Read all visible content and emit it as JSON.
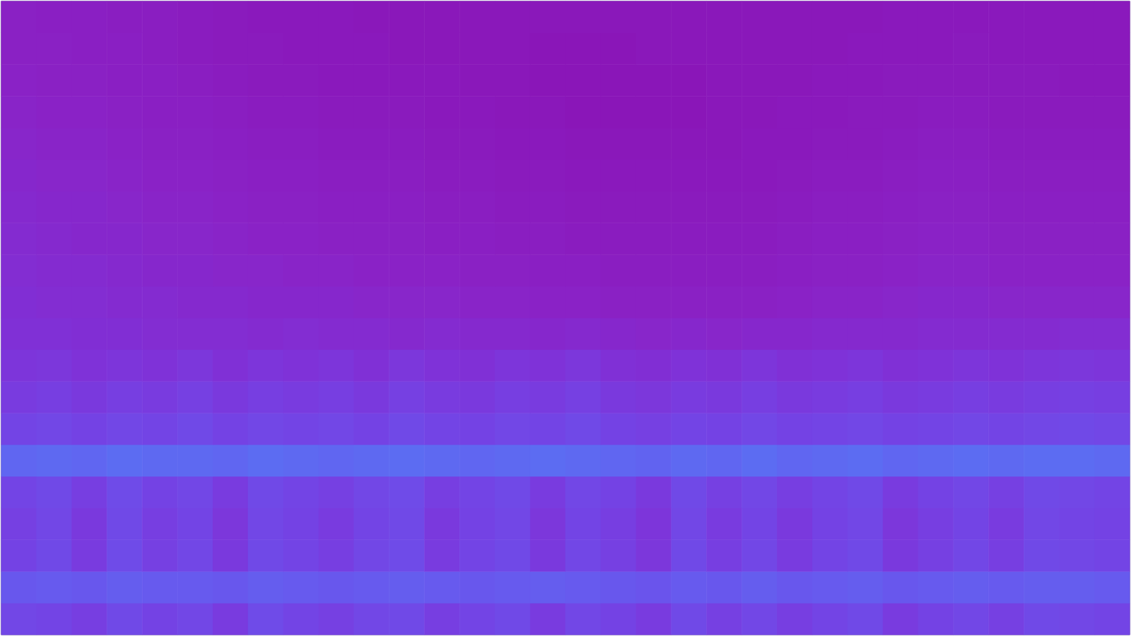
{
  "chart_data": {
    "type": "heatmap",
    "tick_labels": false,
    "grid": false,
    "cells": [
      [
        60,
        58,
        52,
        62,
        56,
        60,
        50,
        64,
        58,
        54,
        60,
        62,
        52,
        58,
        62,
        50,
        60,
        56,
        50,
        62,
        54,
        60,
        52,
        58,
        62,
        50,
        56,
        60,
        54,
        62,
        60,
        58
      ],
      [
        74,
        76,
        74,
        78,
        76,
        76,
        74,
        78,
        76,
        74,
        76,
        78,
        76,
        74,
        76,
        78,
        76,
        74,
        72,
        76,
        74,
        78,
        74,
        76,
        78,
        74,
        76,
        78,
        76,
        78,
        78,
        76
      ],
      [
        56,
        62,
        50,
        64,
        54,
        60,
        48,
        62,
        58,
        52,
        60,
        64,
        50,
        58,
        62,
        48,
        60,
        54,
        46,
        62,
        52,
        60,
        50,
        58,
        62,
        48,
        54,
        60,
        52,
        62,
        60,
        58
      ],
      [
        54,
        60,
        48,
        62,
        52,
        58,
        46,
        60,
        56,
        50,
        58,
        62,
        48,
        56,
        60,
        46,
        58,
        52,
        44,
        60,
        50,
        58,
        48,
        56,
        60,
        46,
        52,
        58,
        50,
        60,
        58,
        56
      ],
      [
        58,
        62,
        52,
        64,
        56,
        60,
        50,
        62,
        58,
        54,
        60,
        64,
        52,
        58,
        62,
        50,
        60,
        56,
        48,
        62,
        54,
        60,
        52,
        58,
        62,
        50,
        56,
        60,
        54,
        62,
        60,
        58
      ],
      [
        84,
        86,
        84,
        88,
        86,
        86,
        84,
        88,
        86,
        84,
        86,
        88,
        86,
        84,
        86,
        88,
        86,
        84,
        82,
        86,
        84,
        88,
        84,
        86,
        88,
        84,
        86,
        88,
        86,
        88,
        88,
        86
      ],
      [
        58,
        60,
        56,
        60,
        58,
        62,
        56,
        60,
        58,
        60,
        56,
        62,
        58,
        56,
        60,
        58,
        62,
        56,
        54,
        58,
        56,
        60,
        56,
        58,
        60,
        56,
        58,
        60,
        58,
        60,
        62,
        60
      ],
      [
        50,
        52,
        48,
        52,
        50,
        54,
        48,
        52,
        50,
        52,
        48,
        54,
        50,
        48,
        52,
        50,
        54,
        48,
        46,
        50,
        48,
        52,
        48,
        50,
        52,
        48,
        50,
        52,
        50,
        52,
        54,
        52
      ],
      [
        44,
        46,
        42,
        44,
        42,
        46,
        40,
        44,
        42,
        44,
        40,
        46,
        42,
        40,
        44,
        42,
        46,
        40,
        38,
        42,
        40,
        44,
        40,
        42,
        44,
        40,
        42,
        44,
        42,
        44,
        46,
        44
      ],
      [
        40,
        40,
        38,
        38,
        36,
        36,
        36,
        34,
        36,
        34,
        34,
        32,
        34,
        32,
        32,
        30,
        32,
        30,
        28,
        30,
        28,
        30,
        30,
        32,
        32,
        32,
        34,
        34,
        34,
        34,
        36,
        36
      ],
      [
        38,
        36,
        36,
        34,
        34,
        32,
        32,
        30,
        30,
        30,
        28,
        28,
        28,
        26,
        26,
        24,
        24,
        22,
        22,
        22,
        22,
        22,
        24,
        26,
        26,
        28,
        30,
        30,
        28,
        28,
        28,
        28
      ],
      [
        36,
        34,
        34,
        32,
        30,
        30,
        28,
        28,
        26,
        26,
        24,
        24,
        24,
        22,
        22,
        20,
        20,
        18,
        18,
        18,
        18,
        18,
        20,
        22,
        22,
        24,
        26,
        26,
        24,
        24,
        24,
        24
      ],
      [
        34,
        32,
        30,
        30,
        28,
        28,
        26,
        24,
        24,
        22,
        22,
        22,
        20,
        20,
        18,
        18,
        16,
        16,
        16,
        16,
        16,
        16,
        18,
        20,
        20,
        22,
        24,
        24,
        22,
        22,
        22,
        22
      ],
      [
        32,
        30,
        30,
        28,
        26,
        26,
        24,
        22,
        22,
        20,
        20,
        20,
        18,
        18,
        16,
        16,
        14,
        14,
        14,
        14,
        14,
        14,
        16,
        18,
        18,
        20,
        22,
        22,
        20,
        20,
        20,
        20
      ],
      [
        30,
        28,
        28,
        26,
        24,
        24,
        22,
        20,
        20,
        18,
        18,
        18,
        16,
        16,
        14,
        14,
        12,
        12,
        12,
        12,
        12,
        12,
        14,
        16,
        16,
        18,
        20,
        20,
        18,
        18,
        18,
        18
      ],
      [
        28,
        26,
        26,
        24,
        22,
        22,
        20,
        18,
        18,
        16,
        16,
        16,
        14,
        14,
        12,
        12,
        10,
        10,
        10,
        10,
        10,
        12,
        12,
        14,
        14,
        16,
        18,
        18,
        16,
        16,
        16,
        16
      ],
      [
        26,
        24,
        24,
        22,
        20,
        20,
        18,
        16,
        16,
        14,
        14,
        14,
        12,
        12,
        10,
        10,
        8,
        8,
        8,
        8,
        10,
        10,
        12,
        12,
        14,
        14,
        16,
        16,
        14,
        14,
        14,
        14
      ],
      [
        24,
        22,
        22,
        20,
        20,
        18,
        16,
        14,
        14,
        12,
        12,
        12,
        12,
        10,
        10,
        8,
        8,
        8,
        8,
        8,
        10,
        10,
        10,
        12,
        12,
        14,
        14,
        14,
        14,
        14,
        12,
        12
      ],
      [
        22,
        22,
        20,
        20,
        18,
        16,
        14,
        14,
        12,
        12,
        12,
        10,
        10,
        10,
        10,
        8,
        8,
        8,
        10,
        10,
        10,
        10,
        10,
        10,
        12,
        12,
        12,
        14,
        12,
        12,
        12,
        12
      ],
      [
        22,
        20,
        20,
        18,
        18,
        16,
        14,
        12,
        12,
        12,
        10,
        10,
        10,
        10,
        10,
        10,
        10,
        10,
        10,
        10,
        10,
        10,
        10,
        10,
        10,
        12,
        12,
        12,
        12,
        12,
        12,
        12
      ]
    ]
  }
}
